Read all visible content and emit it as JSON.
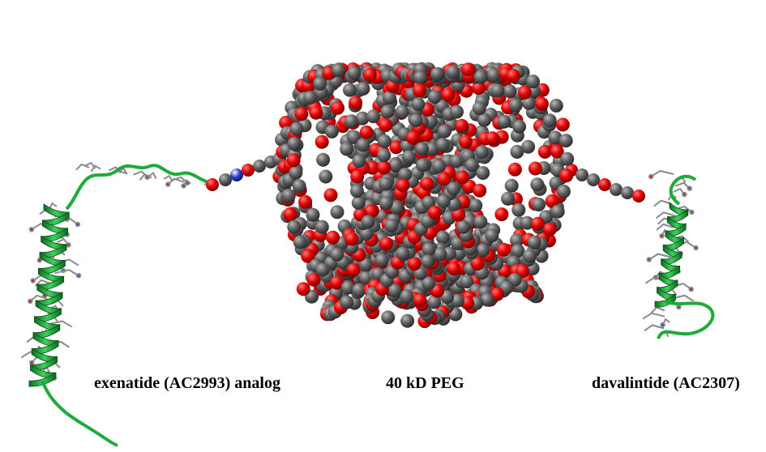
{
  "labels": {
    "left": "exenatide (AC2993) analog",
    "center": "40 kD PEG",
    "right": "davalintide (AC2307)"
  },
  "colors": {
    "background": "#ffffff",
    "carbon": "#5b5b5b",
    "oxygen": "#e00000",
    "helix": "#1faa3a",
    "sidechain": "#8a8a8a",
    "nitrogen": "#2a3fd0",
    "sulfur": "#e8d000"
  },
  "description_icons": [
    "peg-polymer-sphere",
    "peptide-helix-left",
    "peptide-helix-right"
  ]
}
